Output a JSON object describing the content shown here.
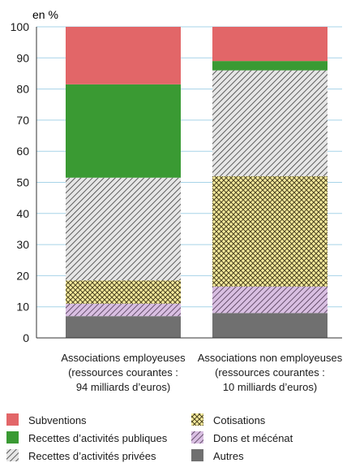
{
  "chart_data": {
    "type": "bar",
    "stacked": true,
    "unit_label": "en %",
    "ylim": [
      0,
      100
    ],
    "yticks": [
      0,
      10,
      20,
      30,
      40,
      50,
      60,
      70,
      80,
      90,
      100
    ],
    "grid": true,
    "legend_position": "bottom",
    "categories": [
      [
        "Associations employeuses",
        "(ressources courantes :",
        "94 milliards d’euros)"
      ],
      [
        "Associations non employeuses",
        "(ressources courantes :",
        "10 milliards d’euros)"
      ]
    ],
    "series": [
      {
        "name": "Autres",
        "values": [
          7,
          8
        ],
        "color": "#707070",
        "pattern": "solid"
      },
      {
        "name": "Dons et mécénat",
        "values": [
          4,
          8.5
        ],
        "color": "#c9a8d4",
        "pattern": "diagonal"
      },
      {
        "name": "Cotisations",
        "values": [
          7.5,
          35.5
        ],
        "color": "#f4e99b",
        "pattern": "crosshatch"
      },
      {
        "name": "Recettes d’activités privées",
        "values": [
          33,
          34
        ],
        "color": "#d9d9d9",
        "pattern": "diagonal"
      },
      {
        "name": "Recettes d’activités publiques",
        "values": [
          30,
          3
        ],
        "color": "#3a9a33",
        "pattern": "solid"
      },
      {
        "name": "Subventions",
        "values": [
          18.5,
          11
        ],
        "color": "#e26668",
        "pattern": "solid"
      }
    ],
    "legend_order": [
      "Subventions",
      "Recettes d’activités publiques",
      "Recettes d’activités privées",
      "Cotisations",
      "Dons et mécénat",
      "Autres"
    ]
  }
}
